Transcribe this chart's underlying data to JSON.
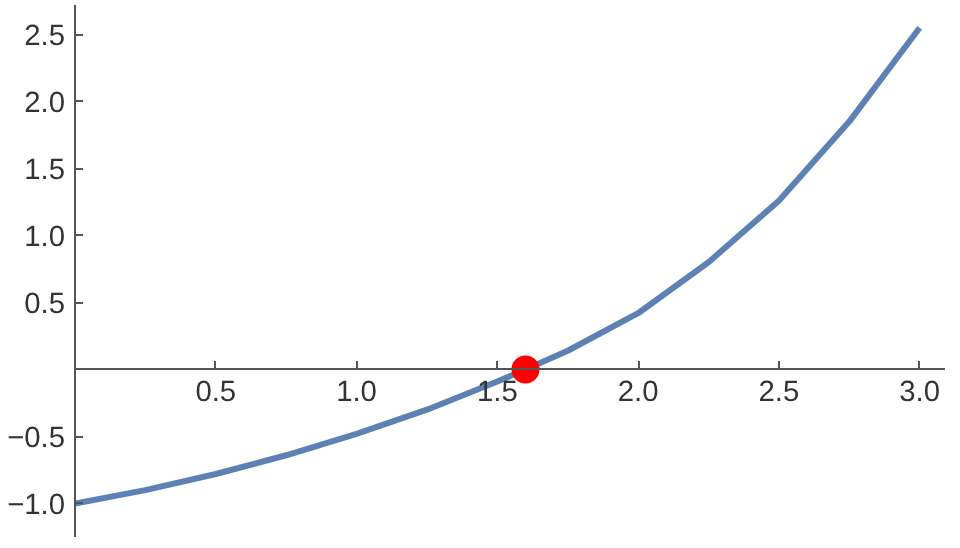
{
  "chart_data": {
    "type": "line",
    "xlim": [
      0,
      3.09
    ],
    "ylim": [
      -1.25,
      2.72
    ],
    "xticks": [
      {
        "value": 0.5,
        "label": "0.5"
      },
      {
        "value": 1,
        "label": "1.0"
      },
      {
        "value": 1.5,
        "label": "1.5"
      },
      {
        "value": 2,
        "label": "2.0"
      },
      {
        "value": 2.5,
        "label": "2.5"
      },
      {
        "value": 3,
        "label": "3.0"
      }
    ],
    "yticks": [
      {
        "value": -1,
        "label": "−1.0"
      },
      {
        "value": -0.5,
        "label": "−0.5"
      },
      {
        "value": 0.5,
        "label": "0.5"
      },
      {
        "value": 1,
        "label": "1.0"
      },
      {
        "value": 1.5,
        "label": "1.5"
      },
      {
        "value": 2,
        "label": "2.0"
      },
      {
        "value": 2.5,
        "label": "2.5"
      }
    ],
    "grid": false,
    "marker": "none",
    "line_style": "solid",
    "series": [
      {
        "color": "#5e81b5",
        "x": [
          0,
          0.25,
          0.5,
          0.75,
          1.0,
          1.25,
          1.5,
          1.6,
          1.75,
          2.0,
          2.25,
          2.5,
          2.75,
          3.0
        ],
        "values": [
          -1.0,
          -0.9,
          -0.78,
          -0.64,
          -0.48,
          -0.3,
          -0.09,
          0.0,
          0.14,
          0.42,
          0.8,
          1.26,
          1.85,
          2.55
        ]
      },
      {
        "type": "scatter",
        "color": "#ff0000",
        "marker": "circle",
        "x": [
          1.6
        ],
        "values": [
          0.0
        ]
      }
    ]
  }
}
